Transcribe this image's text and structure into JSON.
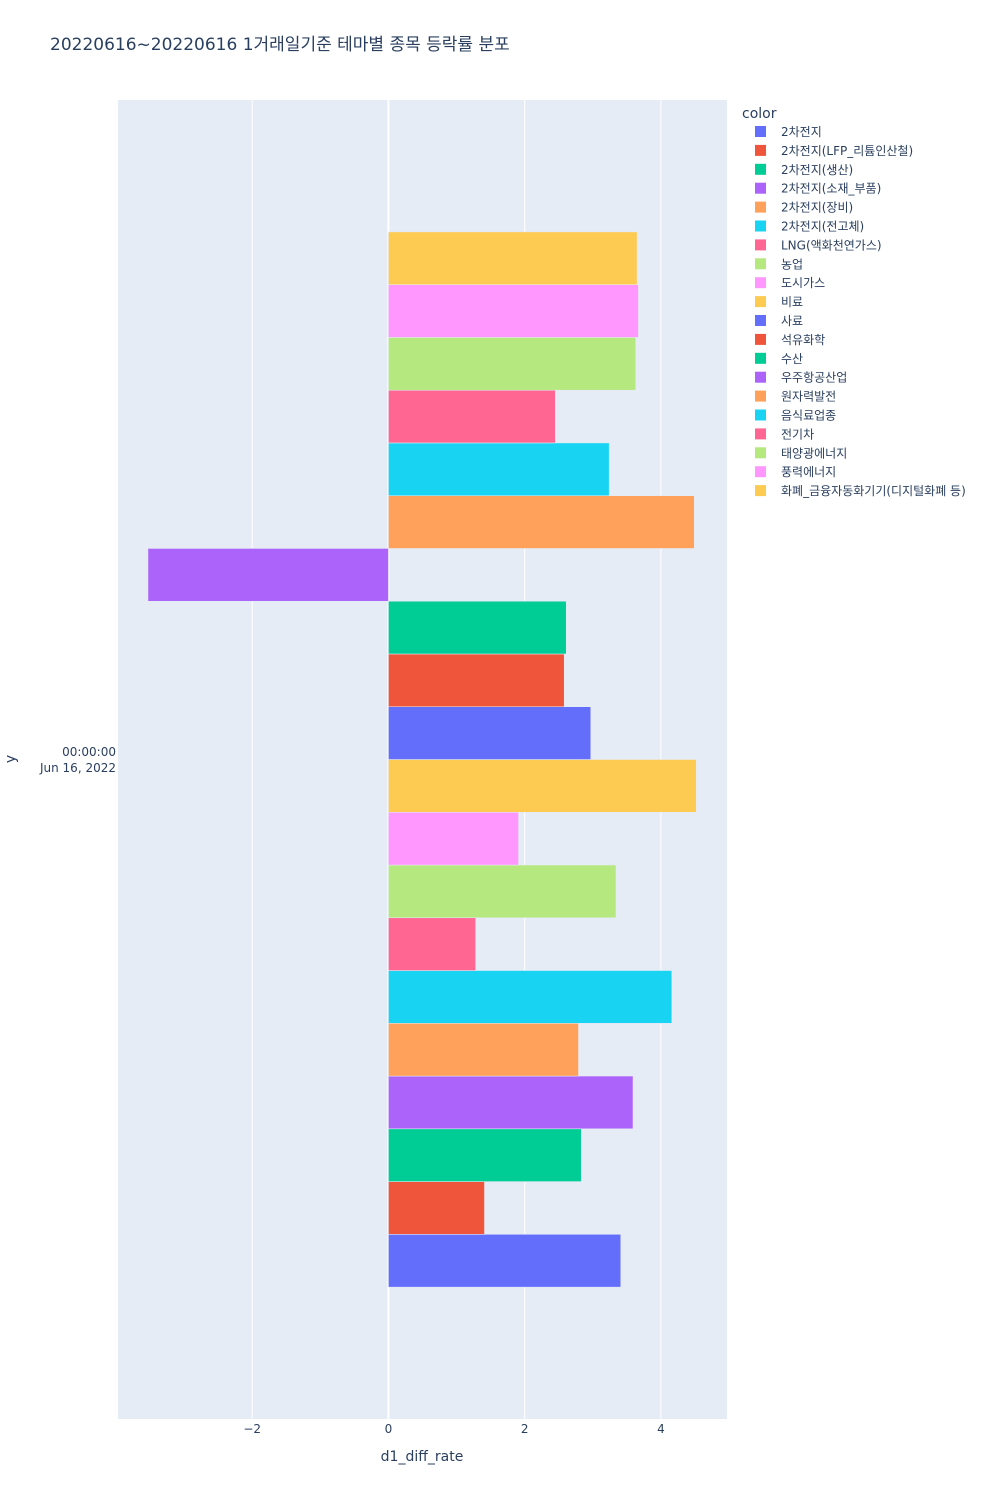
{
  "chart_data": {
    "type": "bar",
    "orientation": "horizontal",
    "barmode": "group",
    "title": "20220616~20220616 1거래일기준 테마별 종목 등락률 분포",
    "xlabel": "d1_diff_rate",
    "ylabel": "y",
    "y_category": [
      "00:00:00",
      "Jun 16, 2022"
    ],
    "xlim": [
      -3.97,
      4.97
    ],
    "xticks": [
      -2,
      0,
      2,
      4
    ],
    "xtick_labels": [
      "−2",
      "0",
      "2",
      "4"
    ],
    "grid": true,
    "legend_title": "color",
    "legend_position": "right",
    "series": [
      {
        "name": "2차전지",
        "color": "#636efa",
        "values": [
          3.41
        ]
      },
      {
        "name": "2차전지(LFP_리튬인산철)",
        "color": "#ef553b",
        "values": [
          1.41
        ]
      },
      {
        "name": "2차전지(생산)",
        "color": "#00cc96",
        "values": [
          2.83
        ]
      },
      {
        "name": "2차전지(소재_부품)",
        "color": "#ab63fa",
        "values": [
          3.59
        ]
      },
      {
        "name": "2차전지(장비)",
        "color": "#ffa15a",
        "values": [
          2.79
        ]
      },
      {
        "name": "2차전지(전고체)",
        "color": "#19d3f3",
        "values": [
          4.16
        ]
      },
      {
        "name": "LNG(액화천연가스)",
        "color": "#ff6692",
        "values": [
          1.28
        ]
      },
      {
        "name": "농업",
        "color": "#b6e880",
        "values": [
          3.34
        ]
      },
      {
        "name": "도시가스",
        "color": "#ff97ff",
        "values": [
          1.91
        ]
      },
      {
        "name": "비료",
        "color": "#fecb52",
        "values": [
          4.52
        ]
      },
      {
        "name": "사료",
        "color": "#636efa",
        "values": [
          2.97
        ]
      },
      {
        "name": "석유화학",
        "color": "#ef553b",
        "values": [
          2.58
        ]
      },
      {
        "name": "수산",
        "color": "#00cc96",
        "values": [
          2.61
        ]
      },
      {
        "name": "우주항공산업",
        "color": "#ab63fa",
        "values": [
          -3.53
        ]
      },
      {
        "name": "원자력발전",
        "color": "#ffa15a",
        "values": [
          4.49
        ]
      },
      {
        "name": "음식료업종",
        "color": "#19d3f3",
        "values": [
          3.24
        ]
      },
      {
        "name": "전기차",
        "color": "#ff6692",
        "values": [
          2.45
        ]
      },
      {
        "name": "태양광에너지",
        "color": "#b6e880",
        "values": [
          3.63
        ]
      },
      {
        "name": "풍력에너지",
        "color": "#ff97ff",
        "values": [
          3.67
        ]
      },
      {
        "name": "화폐_금융자동화기기(디지털화폐 등)",
        "color": "#fecb52",
        "values": [
          3.65
        ]
      }
    ]
  }
}
